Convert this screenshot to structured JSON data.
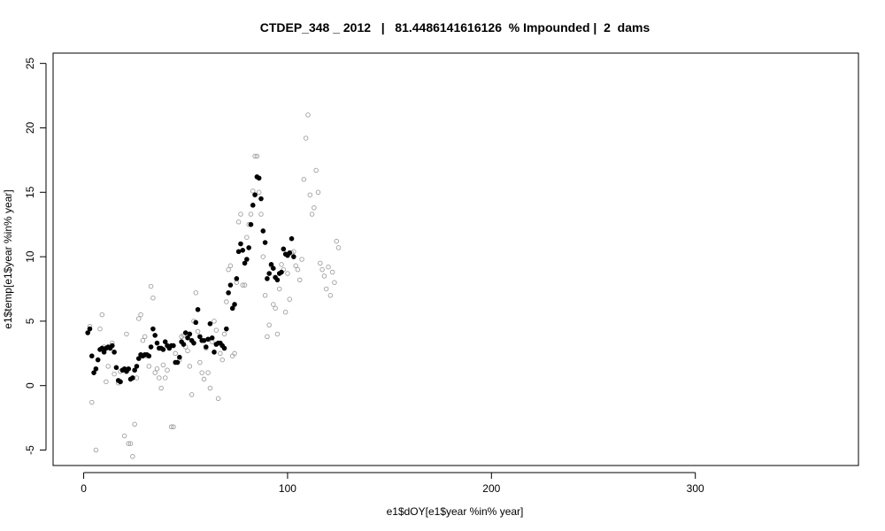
{
  "chart_data": {
    "type": "scatter",
    "title": "CTDEP_348 _ 2012   |   81.4486141616126  % Impounded |  2  dams",
    "xlabel": "e1$dOY[e1$year %in% year]",
    "ylabel": "e1$temp[e1$year %in% year]",
    "xlim": [
      -15,
      380
    ],
    "ylim": [
      -6.2,
      25.8
    ],
    "xticks": [
      0,
      100,
      200,
      300
    ],
    "yticks": [
      -5,
      0,
      5,
      10,
      15,
      20,
      25
    ],
    "grid": false,
    "legend": "none",
    "colors": {
      "filled": "#000000",
      "open": "#a0a0a0"
    },
    "series": [
      {
        "marker": "filled-circle",
        "color": "#000000",
        "points": [
          [
            2,
            4.1
          ],
          [
            3,
            4.4
          ],
          [
            4,
            2.3
          ],
          [
            5,
            1.0
          ],
          [
            6,
            1.3
          ],
          [
            7,
            2.0
          ],
          [
            8,
            2.8
          ],
          [
            9,
            2.9
          ],
          [
            10,
            2.6
          ],
          [
            11,
            2.9
          ],
          [
            12,
            3.0
          ],
          [
            13,
            2.9
          ],
          [
            14,
            3.1
          ],
          [
            15,
            2.6
          ],
          [
            16,
            1.4
          ],
          [
            17,
            0.4
          ],
          [
            18,
            0.3
          ],
          [
            19,
            1.2
          ],
          [
            20,
            1.3
          ],
          [
            21,
            1.1
          ],
          [
            22,
            1.3
          ],
          [
            23,
            0.5
          ],
          [
            24,
            0.6
          ],
          [
            25,
            1.2
          ],
          [
            26,
            1.5
          ],
          [
            27,
            2.1
          ],
          [
            28,
            2.4
          ],
          [
            29,
            2.3
          ],
          [
            30,
            2.4
          ],
          [
            31,
            2.4
          ],
          [
            32,
            2.3
          ],
          [
            33,
            3.0
          ],
          [
            34,
            4.4
          ],
          [
            35,
            3.9
          ],
          [
            36,
            3.3
          ],
          [
            37,
            2.9
          ],
          [
            38,
            2.9
          ],
          [
            39,
            2.8
          ],
          [
            40,
            3.4
          ],
          [
            41,
            3.1
          ],
          [
            42,
            2.9
          ],
          [
            43,
            3.1
          ],
          [
            44,
            3.1
          ],
          [
            45,
            1.8
          ],
          [
            46,
            1.8
          ],
          [
            47,
            2.2
          ],
          [
            48,
            3.4
          ],
          [
            49,
            3.2
          ],
          [
            50,
            4.1
          ],
          [
            51,
            3.7
          ],
          [
            52,
            4.0
          ],
          [
            53,
            3.5
          ],
          [
            54,
            3.3
          ],
          [
            55,
            4.9
          ],
          [
            56,
            5.9
          ],
          [
            57,
            3.8
          ],
          [
            58,
            3.5
          ],
          [
            59,
            3.5
          ],
          [
            60,
            3.0
          ],
          [
            61,
            3.6
          ],
          [
            62,
            4.8
          ],
          [
            63,
            3.7
          ],
          [
            64,
            2.6
          ],
          [
            65,
            3.2
          ],
          [
            66,
            3.3
          ],
          [
            67,
            3.3
          ],
          [
            68,
            3.1
          ],
          [
            69,
            2.9
          ],
          [
            70,
            4.4
          ],
          [
            71,
            7.2
          ],
          [
            72,
            7.8
          ],
          [
            73,
            6.0
          ],
          [
            74,
            6.3
          ],
          [
            75,
            8.3
          ],
          [
            76,
            10.4
          ],
          [
            77,
            11.0
          ],
          [
            78,
            10.5
          ],
          [
            79,
            9.5
          ],
          [
            80,
            9.8
          ],
          [
            81,
            10.7
          ],
          [
            82,
            12.5
          ],
          [
            83,
            14.0
          ],
          [
            84,
            14.8
          ],
          [
            85,
            16.2
          ],
          [
            86,
            16.1
          ],
          [
            87,
            14.5
          ],
          [
            88,
            12.0
          ],
          [
            89,
            11.1
          ],
          [
            90,
            8.3
          ],
          [
            91,
            8.7
          ],
          [
            92,
            9.4
          ],
          [
            93,
            9.1
          ],
          [
            94,
            8.4
          ],
          [
            95,
            8.2
          ],
          [
            96,
            8.7
          ],
          [
            97,
            8.8
          ],
          [
            98,
            10.6
          ],
          [
            99,
            10.2
          ],
          [
            100,
            10.1
          ],
          [
            101,
            10.3
          ],
          [
            102,
            11.4
          ],
          [
            103,
            10.0
          ]
        ]
      },
      {
        "marker": "open-circle",
        "color": "#a0a0a0",
        "points": [
          [
            3,
            4.6
          ],
          [
            4,
            -1.3
          ],
          [
            6,
            -5.0
          ],
          [
            8,
            4.4
          ],
          [
            9,
            5.5
          ],
          [
            10,
            3.0
          ],
          [
            11,
            0.3
          ],
          [
            12,
            1.5
          ],
          [
            14,
            3.3
          ],
          [
            15,
            0.9
          ],
          [
            17,
            0.2
          ],
          [
            18,
            1.1
          ],
          [
            20,
            -3.9
          ],
          [
            21,
            4.0
          ],
          [
            22,
            -4.5
          ],
          [
            23,
            -4.5
          ],
          [
            24,
            -5.5
          ],
          [
            25,
            -3.0
          ],
          [
            26,
            0.6
          ],
          [
            27,
            5.2
          ],
          [
            28,
            5.5
          ],
          [
            29,
            3.5
          ],
          [
            30,
            3.8
          ],
          [
            31,
            2.3
          ],
          [
            32,
            1.5
          ],
          [
            33,
            7.7
          ],
          [
            34,
            6.8
          ],
          [
            35,
            1.0
          ],
          [
            36,
            1.3
          ],
          [
            37,
            0.6
          ],
          [
            38,
            -0.2
          ],
          [
            39,
            1.6
          ],
          [
            40,
            0.6
          ],
          [
            41,
            1.2
          ],
          [
            43,
            -3.2
          ],
          [
            44,
            -3.2
          ],
          [
            45,
            2.5
          ],
          [
            47,
            2.0
          ],
          [
            48,
            3.8
          ],
          [
            49,
            3.9
          ],
          [
            50,
            3.0
          ],
          [
            51,
            2.7
          ],
          [
            52,
            1.5
          ],
          [
            53,
            -0.7
          ],
          [
            54,
            5.0
          ],
          [
            55,
            7.2
          ],
          [
            56,
            4.2
          ],
          [
            57,
            1.8
          ],
          [
            58,
            1.0
          ],
          [
            59,
            0.5
          ],
          [
            60,
            2.9
          ],
          [
            61,
            1.0
          ],
          [
            62,
            -0.2
          ],
          [
            63,
            3.4
          ],
          [
            64,
            5.0
          ],
          [
            65,
            4.3
          ],
          [
            66,
            -1.0
          ],
          [
            67,
            2.5
          ],
          [
            68,
            2.0
          ],
          [
            69,
            4.0
          ],
          [
            70,
            6.5
          ],
          [
            71,
            9.0
          ],
          [
            72,
            9.3
          ],
          [
            73,
            2.3
          ],
          [
            74,
            2.5
          ],
          [
            75,
            8.0
          ],
          [
            76,
            12.7
          ],
          [
            77,
            13.3
          ],
          [
            78,
            7.8
          ],
          [
            79,
            7.8
          ],
          [
            80,
            11.5
          ],
          [
            81,
            12.5
          ],
          [
            82,
            13.3
          ],
          [
            83,
            15.1
          ],
          [
            84,
            17.8
          ],
          [
            85,
            17.8
          ],
          [
            86,
            15.0
          ],
          [
            87,
            13.3
          ],
          [
            88,
            10.0
          ],
          [
            89,
            7.0
          ],
          [
            90,
            3.8
          ],
          [
            91,
            4.7
          ],
          [
            92,
            9.3
          ],
          [
            93,
            6.3
          ],
          [
            94,
            6.0
          ],
          [
            95,
            4.0
          ],
          [
            96,
            7.5
          ],
          [
            97,
            9.4
          ],
          [
            98,
            9.0
          ],
          [
            99,
            5.7
          ],
          [
            100,
            8.7
          ],
          [
            101,
            6.7
          ],
          [
            102,
            10.3
          ],
          [
            103,
            10.4
          ],
          [
            104,
            9.3
          ],
          [
            105,
            9.0
          ],
          [
            106,
            8.2
          ],
          [
            107,
            9.8
          ],
          [
            108,
            16.0
          ],
          [
            109,
            19.2
          ],
          [
            110,
            21.0
          ],
          [
            111,
            14.8
          ],
          [
            112,
            13.3
          ],
          [
            113,
            13.8
          ],
          [
            114,
            16.7
          ],
          [
            115,
            15.0
          ],
          [
            116,
            9.5
          ],
          [
            117,
            9.0
          ],
          [
            118,
            8.5
          ],
          [
            119,
            7.5
          ],
          [
            120,
            9.2
          ],
          [
            121,
            7.0
          ],
          [
            122,
            8.8
          ],
          [
            123,
            8.0
          ],
          [
            124,
            11.2
          ],
          [
            125,
            10.7
          ]
        ]
      }
    ]
  }
}
